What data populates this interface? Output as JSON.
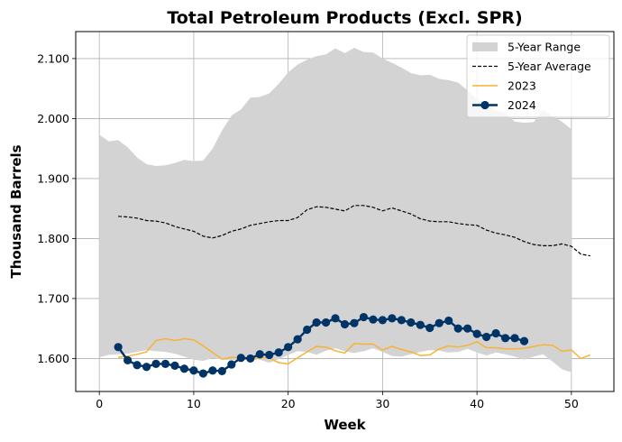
{
  "chart_data": {
    "type": "line",
    "title": "Total Petroleum Products (Excl. SPR)",
    "xlabel": "Week",
    "ylabel": "Thousand Barrels",
    "xlim": [
      -2.5,
      54.5
    ],
    "ylim": [
      1545,
      2145
    ],
    "x_ticks": [
      0,
      10,
      20,
      30,
      40,
      50
    ],
    "y_ticks": [
      1600,
      1700,
      1800,
      1900,
      2000,
      2100
    ],
    "y_tick_labels": [
      "1.600",
      "1.700",
      "1.800",
      "1.900",
      "2.000",
      "2.100"
    ],
    "grid": true,
    "legend_position": "top-right",
    "colors": {
      "range": "#d3d3d3",
      "average": "#000000",
      "y2023": "#f9b233",
      "y2024": "#003366"
    },
    "range": {
      "name": "5-Year Range",
      "x": [
        0,
        1,
        2,
        3,
        4,
        5,
        6,
        7,
        8,
        9,
        10,
        11,
        12,
        13,
        14,
        15,
        16,
        17,
        18,
        19,
        20,
        21,
        22,
        23,
        24,
        25,
        26,
        27,
        28,
        29,
        30,
        31,
        32,
        33,
        34,
        35,
        36,
        37,
        38,
        39,
        40,
        41,
        42,
        43,
        44,
        45,
        46,
        47,
        48,
        49,
        50
      ],
      "upper": [
        1973,
        1962,
        1964,
        1952,
        1935,
        1924,
        1921,
        1922,
        1926,
        1931,
        1929,
        1930,
        1950,
        1980,
        2005,
        2015,
        2035,
        2036,
        2042,
        2058,
        2077,
        2090,
        2098,
        2104,
        2107,
        2117,
        2109,
        2118,
        2111,
        2110,
        2100,
        2093,
        2085,
        2076,
        2072,
        2073,
        2066,
        2064,
        2060,
        2047,
        2032,
        2025,
        2013,
        2009,
        1995,
        1993,
        1994,
        2015,
        2004,
        1995,
        1982
      ],
      "lower": [
        1602,
        1606,
        1607,
        1608,
        1611,
        1614,
        1612,
        1611,
        1608,
        1603,
        1598,
        1596,
        1601,
        1598,
        1597,
        1599,
        1601,
        1598,
        1593,
        1599,
        1606,
        1612,
        1611,
        1606,
        1613,
        1617,
        1612,
        1609,
        1612,
        1617,
        1611,
        1604,
        1603,
        1607,
        1611,
        1614,
        1613,
        1610,
        1611,
        1616,
        1610,
        1605,
        1610,
        1607,
        1603,
        1598,
        1603,
        1607,
        1595,
        1582,
        1577
      ]
    },
    "series": [
      {
        "name": "5-Year Average",
        "x": [
          2,
          3,
          4,
          5,
          6,
          7,
          8,
          9,
          10,
          11,
          12,
          13,
          14,
          15,
          16,
          17,
          18,
          19,
          20,
          21,
          22,
          23,
          24,
          25,
          26,
          27,
          28,
          29,
          30,
          31,
          32,
          33,
          34,
          35,
          36,
          37,
          38,
          39,
          40,
          41,
          42,
          43,
          44,
          45,
          46,
          47,
          48,
          49,
          50,
          51,
          52
        ],
        "values": [
          1837,
          1836,
          1834,
          1830,
          1829,
          1826,
          1820,
          1816,
          1812,
          1804,
          1801,
          1805,
          1812,
          1816,
          1822,
          1825,
          1828,
          1830,
          1830,
          1835,
          1848,
          1853,
          1852,
          1849,
          1846,
          1855,
          1855,
          1852,
          1846,
          1851,
          1846,
          1841,
          1833,
          1829,
          1828,
          1828,
          1825,
          1823,
          1822,
          1814,
          1809,
          1806,
          1802,
          1795,
          1790,
          1788,
          1788,
          1791,
          1787,
          1774,
          1771
        ]
      },
      {
        "name": "2023",
        "x": [
          2,
          3,
          4,
          5,
          6,
          7,
          8,
          9,
          10,
          11,
          12,
          13,
          14,
          15,
          16,
          17,
          18,
          19,
          20,
          21,
          22,
          23,
          24,
          25,
          26,
          27,
          28,
          29,
          30,
          31,
          32,
          33,
          34,
          35,
          36,
          37,
          38,
          39,
          40,
          41,
          42,
          43,
          44,
          45,
          46,
          47,
          48,
          49,
          50,
          51,
          52
        ],
        "values": [
          1602,
          1604,
          1607,
          1611,
          1630,
          1633,
          1630,
          1633,
          1631,
          1621,
          1610,
          1599,
          1602,
          1601,
          1597,
          1601,
          1601,
          1593,
          1591,
          1601,
          1611,
          1620,
          1619,
          1613,
          1609,
          1625,
          1624,
          1624,
          1614,
          1620,
          1615,
          1611,
          1605,
          1606,
          1616,
          1621,
          1619,
          1622,
          1628,
          1618,
          1618,
          1616,
          1616,
          1617,
          1620,
          1623,
          1622,
          1612,
          1614,
          1600,
          1606
        ]
      },
      {
        "name": "2024",
        "x": [
          2,
          3,
          4,
          5,
          6,
          7,
          8,
          9,
          10,
          11,
          12,
          13,
          14,
          15,
          16,
          17,
          18,
          19,
          20,
          21,
          22,
          23,
          24,
          25,
          26,
          27,
          28,
          29,
          30,
          31,
          32,
          33,
          34,
          35,
          36,
          37,
          38,
          39,
          40,
          41,
          42,
          43,
          44,
          45
        ],
        "values": [
          1619,
          1597,
          1589,
          1586,
          1591,
          1591,
          1588,
          1583,
          1580,
          1575,
          1580,
          1579,
          1590,
          1601,
          1600,
          1607,
          1606,
          1610,
          1619,
          1632,
          1648,
          1660,
          1660,
          1667,
          1657,
          1659,
          1669,
          1665,
          1664,
          1667,
          1664,
          1660,
          1656,
          1651,
          1659,
          1663,
          1650,
          1650,
          1641,
          1636,
          1642,
          1634,
          1634,
          1629
        ]
      }
    ]
  }
}
